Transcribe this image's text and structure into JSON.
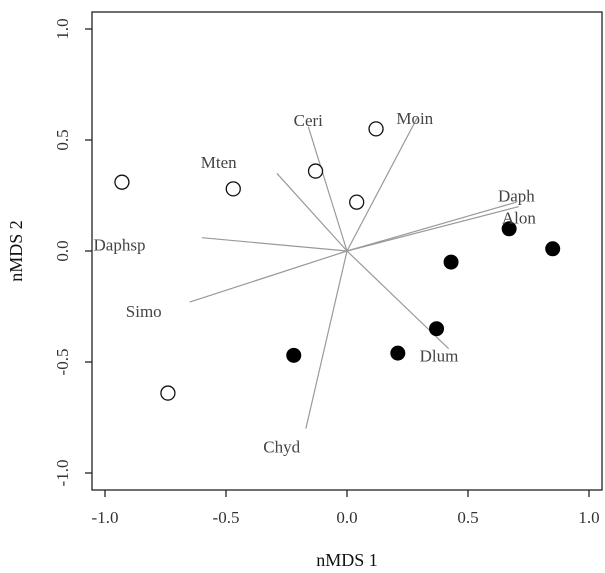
{
  "chart_data": {
    "type": "scatter",
    "xlabel": "nMDS 1",
    "ylabel": "nMDS 2",
    "xlim": [
      -1.1,
      1.1
    ],
    "ylim": [
      -1.1,
      1.1
    ],
    "x_ticks": [
      "-1.0",
      "-0.5",
      "0.0",
      "0.5",
      "1.0"
    ],
    "y_ticks": [
      "-1.0",
      "-0.5",
      "0.0",
      "0.5",
      "1.0"
    ],
    "grid": false,
    "series": [
      {
        "marker": "open-circle",
        "points": [
          {
            "x": -0.93,
            "y": 0.31
          },
          {
            "x": -0.47,
            "y": 0.28
          },
          {
            "x": -0.13,
            "y": 0.36
          },
          {
            "x": 0.04,
            "y": 0.22
          },
          {
            "x": 0.12,
            "y": 0.55
          },
          {
            "x": -0.74,
            "y": -0.64
          }
        ]
      },
      {
        "marker": "filled-circle",
        "points": [
          {
            "x": 0.43,
            "y": -0.05
          },
          {
            "x": 0.67,
            "y": 0.1
          },
          {
            "x": 0.85,
            "y": 0.01
          },
          {
            "x": 0.37,
            "y": -0.35
          },
          {
            "x": 0.21,
            "y": -0.46
          },
          {
            "x": -0.22,
            "y": -0.47
          }
        ]
      }
    ],
    "vectors": [
      {
        "label": "Ceri",
        "x": -0.16,
        "y": 0.56
      },
      {
        "label": "Moin",
        "x": 0.29,
        "y": 0.6
      },
      {
        "label": "Mten",
        "x": -0.29,
        "y": 0.35
      },
      {
        "label": "Daph",
        "x": 0.7,
        "y": 0.22
      },
      {
        "label": "Alon",
        "x": 0.71,
        "y": 0.2
      },
      {
        "label": "Daphsp",
        "x": -0.6,
        "y": 0.06
      },
      {
        "label": "Simo",
        "x": -0.65,
        "y": -0.23
      },
      {
        "label": "Dlum",
        "x": 0.42,
        "y": -0.44
      },
      {
        "label": "Chyd",
        "x": -0.17,
        "y": -0.8
      }
    ],
    "label_positions": {
      "Ceri": {
        "x": -0.16,
        "y": 0.59
      },
      "Moin": {
        "x": 0.28,
        "y": 0.6
      },
      "Mten": {
        "x": -0.53,
        "y": 0.4
      },
      "Daph": {
        "x": 0.7,
        "y": 0.25
      },
      "Alon": {
        "x": 0.71,
        "y": 0.15
      },
      "Daphsp": {
        "x": -0.94,
        "y": 0.03
      },
      "Simo": {
        "x": -0.84,
        "y": -0.27
      },
      "Dlum": {
        "x": 0.38,
        "y": -0.47
      },
      "Chyd": {
        "x": -0.27,
        "y": -0.88
      }
    }
  }
}
